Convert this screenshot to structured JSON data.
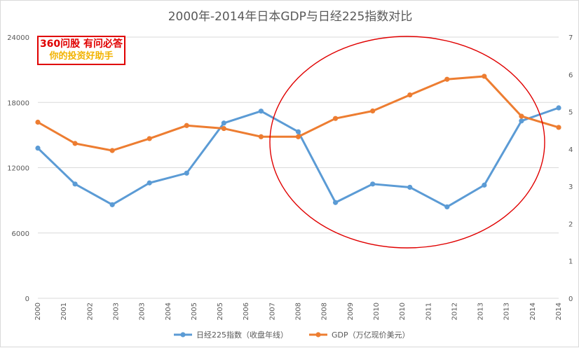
{
  "chart_data": {
    "type": "line",
    "title": "2000年-2014年日本GDP与日经225指数对比",
    "categories": [
      "2000",
      "2001",
      "2002",
      "2003",
      "2003",
      "2004",
      "2005",
      "2005",
      "2006",
      "2007",
      "2008",
      "2008",
      "2009",
      "2010",
      "2010",
      "2011",
      "2012",
      "2013",
      "2013",
      "2014",
      "2014"
    ],
    "y_left": {
      "min": 0,
      "max": 24000,
      "ticks": [
        "0",
        "6000",
        "12000",
        "18000",
        "24000"
      ]
    },
    "y_right": {
      "min": 0,
      "max": 7,
      "ticks": [
        "0",
        "1",
        "2",
        "3",
        "4",
        "5",
        "6",
        "7"
      ]
    },
    "grid": true,
    "legend_position": "bottom",
    "series": [
      {
        "name": "日经225指数（收盘年线）",
        "axis": "left",
        "color": "#5b9bd5",
        "points": [
          {
            "i": 0,
            "v": 13800
          },
          {
            "i": 2,
            "v": 10500
          },
          {
            "i": 4,
            "v": 8600
          },
          {
            "i": 6,
            "v": 10600
          },
          {
            "i": 8,
            "v": 11500
          },
          {
            "i": 10,
            "v": 16100
          },
          {
            "i": 12,
            "v": 17200
          },
          {
            "i": 14,
            "v": 15300
          },
          {
            "i": 16,
            "v": 8800
          },
          {
            "i": 18,
            "v": 10500
          },
          {
            "i": 20,
            "v": 10200
          },
          {
            "i": 22,
            "v": 8400
          },
          {
            "i": 24,
            "v": 10400
          },
          {
            "i": 26,
            "v": 16300
          },
          {
            "i": 28,
            "v": 17500
          }
        ]
      },
      {
        "name": "GDP（万亿现价美元）",
        "axis": "right",
        "color": "#ed7d31",
        "points": [
          {
            "i": 0,
            "v": 4.72
          },
          {
            "i": 2,
            "v": 4.15
          },
          {
            "i": 4,
            "v": 3.96
          },
          {
            "i": 6,
            "v": 4.28
          },
          {
            "i": 8,
            "v": 4.63
          },
          {
            "i": 10,
            "v": 4.55
          },
          {
            "i": 12,
            "v": 4.33
          },
          {
            "i": 14,
            "v": 4.33
          },
          {
            "i": 16,
            "v": 4.82
          },
          {
            "i": 18,
            "v": 5.02
          },
          {
            "i": 20,
            "v": 5.45
          },
          {
            "i": 22,
            "v": 5.87
          },
          {
            "i": 24,
            "v": 5.95
          },
          {
            "i": 26,
            "v": 4.88
          },
          {
            "i": 28,
            "v": 4.58
          }
        ]
      }
    ]
  },
  "watermark": {
    "line1": "360问股 有问必答",
    "line2": "你的投资好助手"
  },
  "annotation_color": "#e00000"
}
